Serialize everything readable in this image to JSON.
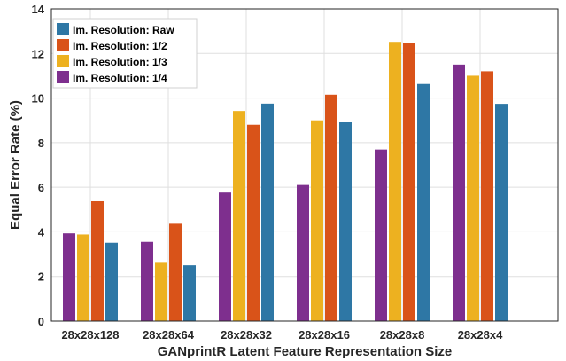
{
  "chart_data": {
    "type": "bar",
    "title": "",
    "xlabel": "GANprintR Latent Feature Representation Size",
    "ylabel": "Equal Error Rate (%)",
    "ylim": [
      0,
      14
    ],
    "yticks": [
      "0",
      "2",
      "4",
      "6",
      "8",
      "10",
      "12",
      "14"
    ],
    "grid": true,
    "legend_position": "top-left",
    "categories": [
      "28x28x128",
      "28x28x64",
      "28x28x32",
      "28x28x16",
      "28x28x8",
      "28x28x4"
    ],
    "series": [
      {
        "name": "Im. Resolution: 1/4",
        "color": "#7E2F8E",
        "values": [
          3.93,
          3.55,
          5.76,
          6.1,
          7.69,
          11.5
        ]
      },
      {
        "name": "Im. Resolution: 1/3",
        "color": "#EDB120",
        "values": [
          3.88,
          2.65,
          9.42,
          9.0,
          12.52,
          11.0
        ]
      },
      {
        "name": "Im. Resolution: 1/2",
        "color": "#D95319",
        "values": [
          5.37,
          4.4,
          8.8,
          10.15,
          12.48,
          11.2
        ]
      },
      {
        "name": "Im. Resolution: Raw",
        "color": "#2E77A5",
        "values": [
          3.51,
          2.5,
          9.75,
          8.93,
          10.63,
          9.74
        ]
      }
    ],
    "legend_order": [
      3,
      2,
      1,
      0
    ]
  }
}
